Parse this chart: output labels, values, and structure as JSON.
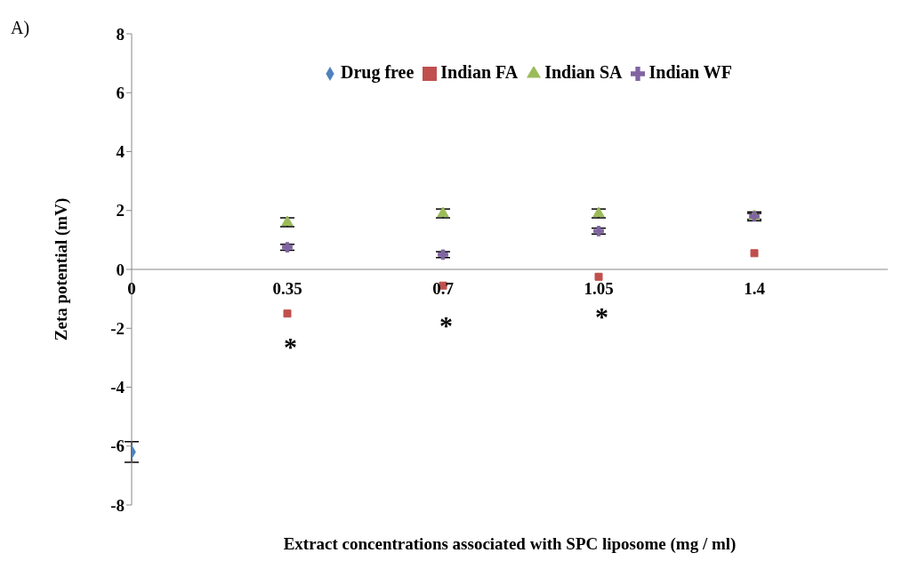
{
  "chart_data": {
    "type": "scatter",
    "xlabel": "Extract concentrations associated with SPC liposome  (mg / ml)",
    "ylabel": "Zeta potential (mV)",
    "xlim": [
      0,
      1.7
    ],
    "xticks": [
      0,
      0.35,
      0.7,
      1.05,
      1.4
    ],
    "ylim": [
      -8,
      8
    ],
    "yticks": [
      -8,
      -6,
      -4,
      -2,
      0,
      2,
      4,
      6,
      8
    ],
    "grid": false,
    "legend": "top",
    "series": [
      {
        "name": "Drug free",
        "color": "#4f81bd",
        "marker": "diamond",
        "x": [
          0
        ],
        "values": [
          -6.2
        ],
        "errors": [
          0.35
        ]
      },
      {
        "name": "Indian FA",
        "color": "#c0504d",
        "marker": "square",
        "x": [
          0.35,
          0.7,
          1.05,
          1.4
        ],
        "values": [
          -1.5,
          -0.55,
          -0.25,
          0.55
        ]
      },
      {
        "name": "Indian SA",
        "color": "#9bbb59",
        "marker": "triangle",
        "x": [
          0.35,
          0.7,
          1.05,
          1.4
        ],
        "values": [
          1.6,
          1.9,
          1.9,
          1.8
        ],
        "errors": [
          0.15,
          0.15,
          0.15,
          0.15
        ]
      },
      {
        "name": "Indian WF",
        "color": "#8064a2",
        "marker": "cross",
        "x": [
          0.35,
          0.7,
          1.05,
          1.4
        ],
        "values": [
          0.75,
          0.5,
          1.3,
          1.8
        ],
        "errors": [
          0.1,
          0.1,
          0.1,
          0.1
        ]
      }
    ],
    "annotations": [
      "A)",
      "*",
      "*",
      "*"
    ]
  }
}
